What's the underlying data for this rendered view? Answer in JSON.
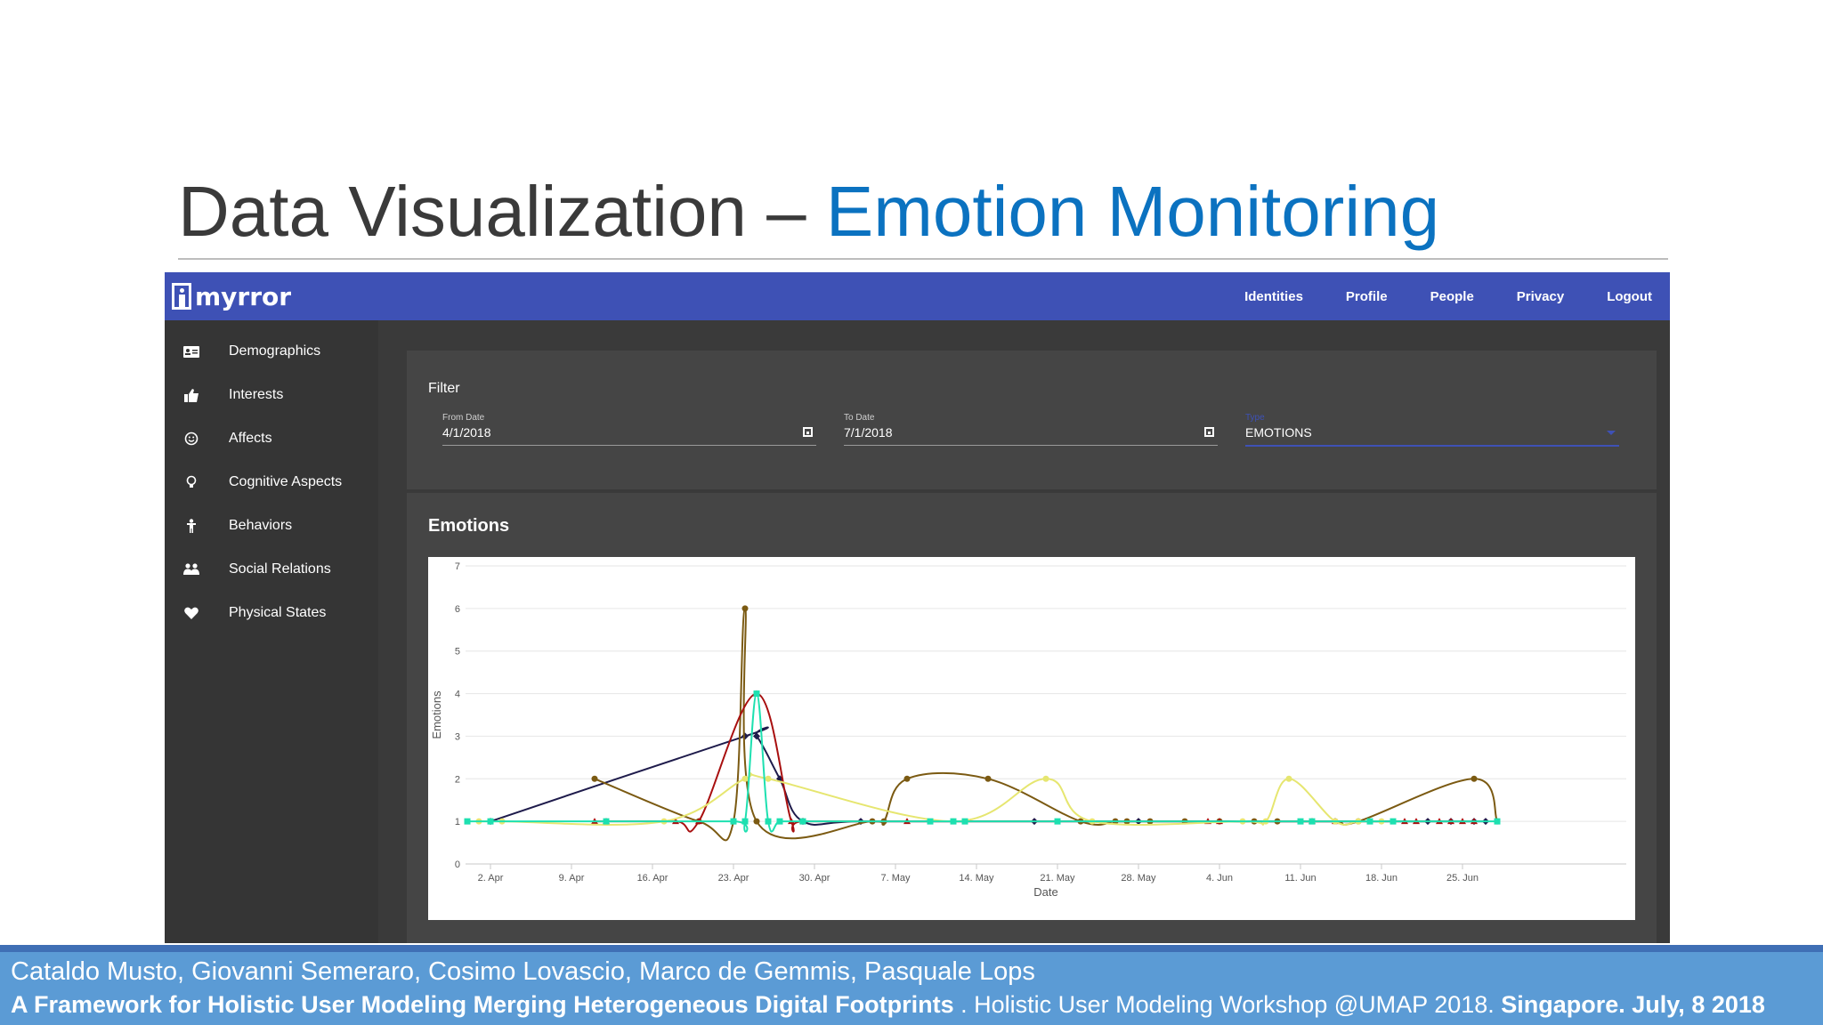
{
  "slide": {
    "title_main": "Data Visualization – ",
    "title_accent": "Emotion Monitoring",
    "accent_color": "#0b72c0"
  },
  "app": {
    "logo_text": "myrror",
    "brand_color": "#3e51b5",
    "nav": [
      "Identities",
      "Profile",
      "People",
      "Privacy",
      "Logout"
    ],
    "sidebar": [
      {
        "label": "Demographics",
        "icon": "id-card-icon"
      },
      {
        "label": "Interests",
        "icon": "thumbs-up-icon"
      },
      {
        "label": "Affects",
        "icon": "smiley-icon"
      },
      {
        "label": "Cognitive Aspects",
        "icon": "lightbulb-icon"
      },
      {
        "label": "Behaviors",
        "icon": "person-icon"
      },
      {
        "label": "Social Relations",
        "icon": "group-icon"
      },
      {
        "label": "Physical States",
        "icon": "heart-icon"
      }
    ],
    "filter": {
      "title": "Filter",
      "from_label": "From Date",
      "from_value": "4/1/2018",
      "to_label": "To Date",
      "to_value": "7/1/2018",
      "type_label": "Type",
      "type_value": "EMOTIONS"
    },
    "emotions_title": "Emotions"
  },
  "chart_data": {
    "type": "line",
    "title": "",
    "xlabel": "Date",
    "ylabel": "Emotions",
    "ylim": [
      0,
      7
    ],
    "yticks": [
      0,
      1,
      2,
      3,
      4,
      5,
      6,
      7
    ],
    "xticks": [
      "2. Apr",
      "9. Apr",
      "16. Apr",
      "23. Apr",
      "30. Apr",
      "7. May",
      "14. May",
      "21. May",
      "28. May",
      "4. Jun",
      "11. Jun",
      "18. Jun",
      "25. Jun"
    ],
    "x_unit": "days from 1. Apr",
    "xlim": [
      -1.2,
      88
    ],
    "grid": true,
    "legend": "none",
    "series": [
      {
        "color": "#1e1b4b",
        "marker": "diamond",
        "x": [
          1,
          23,
          24,
          26,
          28,
          33,
          48,
          57,
          82,
          84,
          86,
          87
        ],
        "y": [
          1,
          3,
          3,
          2,
          1,
          1,
          1,
          1,
          1,
          1,
          1,
          1
        ]
      },
      {
        "color": "#7b5a12",
        "marker": "circle",
        "x": [
          10,
          19,
          22,
          23,
          24,
          34,
          35,
          37,
          44,
          52,
          55,
          56,
          58,
          61,
          64,
          67,
          69,
          74,
          76,
          86,
          88
        ],
        "y": [
          2,
          1,
          1,
          6,
          1,
          1,
          1,
          2,
          2,
          1,
          1,
          1,
          1,
          1,
          1,
          1,
          1,
          1,
          1,
          2,
          1
        ]
      },
      {
        "color": "#a80f0f",
        "marker": "triangle",
        "x": [
          10,
          11,
          17,
          19,
          24,
          27,
          28,
          37,
          63,
          64,
          72,
          74,
          80,
          81,
          83,
          84,
          85,
          86
        ],
        "y": [
          1,
          1,
          1,
          1,
          4,
          1,
          1,
          1,
          1,
          1,
          1,
          1,
          1,
          1,
          1,
          1,
          1,
          1
        ]
      },
      {
        "color": "#e6e670",
        "marker": "circle",
        "x": [
          0,
          2,
          16,
          23,
          25,
          41,
          49,
          53,
          66,
          68,
          70,
          74,
          76,
          78
        ],
        "y": [
          1,
          1,
          1,
          2,
          2,
          1,
          2,
          1,
          1,
          1,
          2,
          1,
          1,
          1
        ]
      },
      {
        "color": "#1de0b0",
        "marker": "square",
        "x": [
          -1,
          1,
          11,
          22,
          23,
          24,
          25,
          26,
          28,
          39,
          41,
          42,
          50,
          71,
          72,
          77,
          79,
          88
        ],
        "y": [
          1,
          1,
          1,
          1,
          1,
          4,
          1,
          1,
          1,
          1,
          1,
          1,
          1,
          1,
          1,
          1,
          1,
          1
        ]
      }
    ]
  },
  "footer": {
    "authors": "Cataldo Musto, Giovanni Semeraro, Cosimo Lovascio, Marco de Gemmis, Pasquale Lops",
    "paper_title": "A Framework for Holistic User Modeling Merging Heterogeneous Digital Footprints",
    "venue": " . Holistic User Modeling Workshop @UMAP 2018. ",
    "place_date": "Singapore. July, 8 2018"
  }
}
